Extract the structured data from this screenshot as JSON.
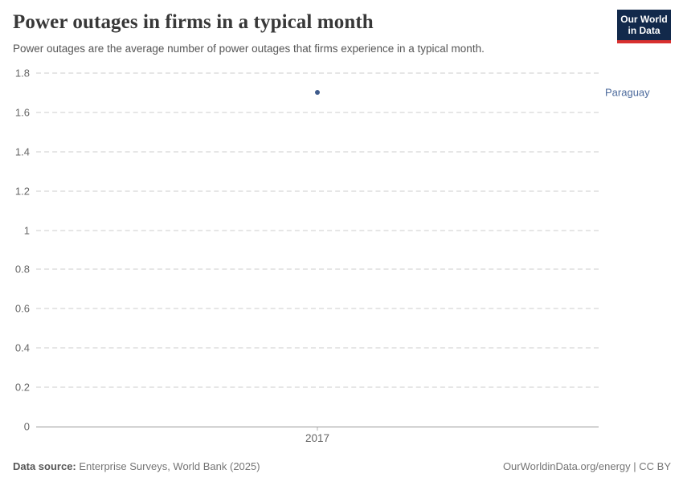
{
  "header": {
    "title": "Power outages in firms in a typical month",
    "subtitle": "Power outages are the average number of power outages that firms experience in a typical month.",
    "logo_line1": "Our World",
    "logo_line2": "in Data"
  },
  "chart_data": {
    "type": "scatter",
    "title": "Power outages in firms in a typical month",
    "x": [
      2017
    ],
    "xtick_labels": [
      "2017"
    ],
    "series": [
      {
        "name": "Paraguay",
        "values": [
          1.7
        ]
      }
    ],
    "xlabel": "",
    "ylabel": "",
    "ylim": [
      0,
      1.8
    ],
    "yticks": [
      0,
      0.2,
      0.4,
      0.6,
      0.8,
      1,
      1.2,
      1.4,
      1.6,
      1.8
    ],
    "ytick_labels": [
      "0",
      "0.2",
      "0.4",
      "0.6",
      "0.8",
      "1",
      "1.2",
      "1.4",
      "1.6",
      "1.8"
    ],
    "grid": "horizontal-dashed",
    "legend_position": "entity-label-right"
  },
  "colors": {
    "point": "#3f5b8c",
    "entity_label": "#4c6a9c",
    "gridline": "#e6e6e6",
    "axis_line": "#9a9a9a",
    "tick_text": "#666666",
    "logo_background": "#12294b",
    "logo_stripe": "#d8302f"
  },
  "footer": {
    "datasource_label": "Data source:",
    "datasource_value": "Enterprise Surveys, World Bank (2025)",
    "credit": "OurWorldinData.org/energy | CC BY"
  }
}
